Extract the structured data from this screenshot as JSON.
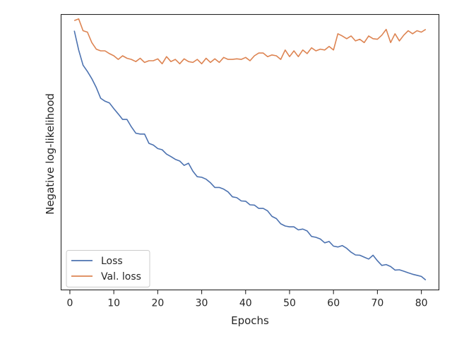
{
  "chart_data": {
    "type": "line",
    "xlabel": "Epochs",
    "ylabel": "Negative log-likelihood",
    "xlim": [
      -2.0,
      84.0
    ],
    "ylim": [
      0.0,
      100.0
    ],
    "xticks": [
      0,
      10,
      20,
      30,
      40,
      50,
      60,
      70,
      80
    ],
    "yticks_visible": false,
    "grid": false,
    "legend_position": "lower-left",
    "x": [
      1,
      2,
      3,
      4,
      5,
      6,
      7,
      8,
      9,
      10,
      11,
      12,
      13,
      14,
      15,
      16,
      17,
      18,
      19,
      20,
      21,
      22,
      23,
      24,
      25,
      26,
      27,
      28,
      29,
      30,
      31,
      32,
      33,
      34,
      35,
      36,
      37,
      38,
      39,
      40,
      41,
      42,
      43,
      44,
      45,
      46,
      47,
      48,
      49,
      50,
      51,
      52,
      53,
      54,
      55,
      56,
      57,
      58,
      59,
      60,
      61,
      62,
      63,
      64,
      65,
      66,
      67,
      68,
      69,
      70,
      71,
      72,
      73,
      74,
      75,
      76,
      77,
      78,
      79,
      80,
      81
    ],
    "series": [
      {
        "name": "Loss",
        "color": "#4c72b0",
        "values": [
          94.1,
          87.1,
          81.6,
          79.3,
          76.7,
          73.5,
          69.6,
          68.5,
          67.9,
          65.8,
          63.9,
          61.9,
          61.9,
          59.2,
          56.9,
          56.6,
          56.6,
          53.2,
          52.6,
          51.3,
          50.9,
          49.3,
          48.4,
          47.4,
          46.8,
          45.2,
          46.0,
          43.1,
          41.1,
          40.9,
          40.2,
          38.9,
          37.2,
          37.2,
          36.6,
          35.6,
          33.8,
          33.5,
          32.3,
          32.2,
          30.9,
          30.8,
          29.6,
          29.6,
          28.7,
          26.7,
          25.9,
          24.0,
          23.2,
          22.9,
          22.9,
          21.8,
          22.1,
          21.4,
          19.4,
          19.1,
          18.5,
          17.1,
          17.6,
          15.9,
          15.6,
          16.1,
          15.1,
          13.7,
          12.7,
          12.6,
          11.9,
          11.2,
          12.6,
          10.6,
          8.9,
          9.2,
          8.5,
          7.2,
          7.3,
          6.8,
          6.2,
          5.7,
          5.3,
          4.9,
          3.6
        ]
      },
      {
        "name": "Val. loss",
        "color": "#dd8452",
        "values": [
          97.8,
          98.4,
          94.1,
          93.6,
          89.8,
          87.4,
          86.8,
          86.8,
          85.8,
          85.0,
          83.7,
          85.0,
          84.1,
          83.7,
          82.9,
          84.1,
          82.6,
          83.2,
          83.2,
          83.9,
          82.1,
          84.7,
          82.9,
          83.7,
          82.1,
          83.9,
          82.9,
          82.6,
          83.7,
          82.1,
          84.1,
          82.6,
          83.9,
          82.6,
          84.4,
          83.7,
          83.7,
          83.9,
          83.7,
          84.4,
          83.2,
          85.0,
          86.0,
          86.0,
          84.7,
          85.3,
          85.0,
          83.7,
          87.1,
          84.7,
          86.8,
          84.7,
          87.1,
          85.8,
          87.9,
          86.8,
          87.4,
          87.1,
          88.4,
          87.1,
          93.0,
          92.2,
          91.2,
          92.2,
          90.4,
          91.0,
          89.8,
          92.2,
          91.2,
          91.0,
          92.5,
          94.6,
          89.8,
          93.0,
          90.4,
          92.5,
          94.1,
          93.0,
          94.1,
          93.6,
          94.6
        ]
      }
    ]
  }
}
